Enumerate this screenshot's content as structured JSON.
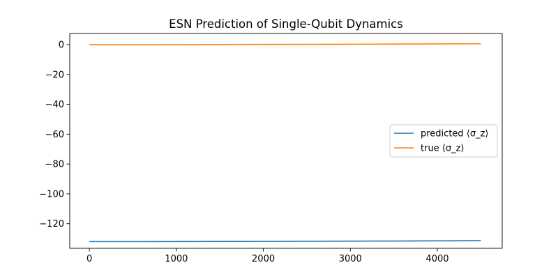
{
  "chart_data": {
    "type": "line",
    "title": "ESN Prediction of Single-Qubit Dynamics",
    "xlabel": "",
    "ylabel": "",
    "xlim": [
      -226,
      4746
    ],
    "ylim": [
      -136.5,
      7.5
    ],
    "xticks": [
      0,
      1000,
      2000,
      3000,
      4000
    ],
    "xtick_labels": [
      "0",
      "1000",
      "2000",
      "3000",
      "4000"
    ],
    "yticks": [
      0,
      -20,
      -40,
      -60,
      -80,
      -100,
      -120
    ],
    "ytick_labels": [
      "0",
      "−20",
      "−40",
      "−60",
      "−80",
      "−100",
      "−120"
    ],
    "grid": false,
    "legend_position": "center-right",
    "series": [
      {
        "name": "predicted ⟨σ_z⟩",
        "color": "#1f77b4",
        "x": [
          0,
          500,
          1000,
          1500,
          2000,
          2500,
          3000,
          3500,
          4000,
          4500
        ],
        "values": [
          -132.0,
          -132.0,
          -131.95,
          -131.9,
          -131.85,
          -131.8,
          -131.7,
          -131.6,
          -131.5,
          -131.4
        ]
      },
      {
        "name": "true ⟨σ_z⟩",
        "color": "#ff7f0e",
        "x": [
          0,
          500,
          1000,
          1500,
          2000,
          2500,
          3000,
          3500,
          4000,
          4500
        ],
        "values": [
          0.0,
          0.0,
          0.05,
          0.1,
          0.15,
          0.2,
          0.3,
          0.4,
          0.5,
          0.6
        ]
      }
    ]
  }
}
